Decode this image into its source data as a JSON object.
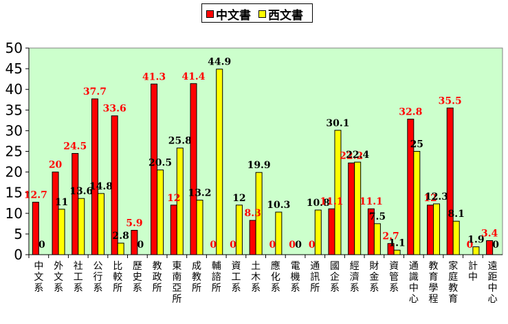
{
  "chart_data": {
    "type": "bar",
    "categories": [
      "中文系",
      "外文系",
      "社工系",
      "公行系",
      "比較所",
      "歷史系",
      "教政所",
      "東南亞所",
      "成教所",
      "輔諮所",
      "資工系",
      "土木系",
      "應化系",
      "電機系",
      "通訊所",
      "國企系",
      "經濟系",
      "財金系",
      "資管系",
      "通識中心",
      "教育學程",
      "家庭教育",
      "計中",
      "遠距中心"
    ],
    "series": [
      {
        "name": "中文書",
        "color": "#ff0000",
        "values": [
          12.7,
          20,
          24.5,
          37.7,
          33.6,
          5.9,
          41.3,
          12,
          41.4,
          0,
          0,
          8.3,
          0,
          0,
          0,
          11.1,
          22.2,
          11.1,
          2.7,
          32.8,
          12,
          35.5,
          0,
          3.4
        ],
        "labels": [
          "12.7",
          "20",
          "24.5",
          "37.7",
          "33.6",
          "5.9",
          "41.3",
          "12",
          "41.4",
          "0",
          "0",
          "8.3",
          "0",
          "0",
          "0",
          "11.1",
          "22.2",
          "11.1",
          "2.7",
          "32.8",
          "12",
          "35.5",
          "0",
          "3.4"
        ]
      },
      {
        "name": "西文書",
        "color": "#ffff00",
        "values": [
          0,
          11,
          13.6,
          14.8,
          2.8,
          0,
          20.5,
          25.8,
          13.2,
          44.9,
          12,
          19.9,
          10.3,
          0,
          10.8,
          30.1,
          22.4,
          7.5,
          1.1,
          25,
          12.3,
          8.1,
          1.9,
          0
        ],
        "labels": [
          "0",
          "11",
          "13.6",
          "14.8",
          "2.8",
          "0",
          "20.5",
          "25.8",
          "13.2",
          "44.9",
          "12",
          "19.9",
          "10.3",
          "0",
          "10.8",
          "30.1",
          "22.4",
          "7.5",
          "1.1",
          "25",
          "12.3",
          "8.1",
          "1.9",
          "0"
        ]
      }
    ],
    "ylim": [
      0,
      50
    ],
    "yticks": [
      "0",
      "5",
      "10",
      "15",
      "20",
      "25",
      "30",
      "35",
      "40",
      "45",
      "50"
    ],
    "grid": false,
    "legend": "top-center",
    "colors": {
      "plot_background": "#ccffcc",
      "red_label": "#ff0000",
      "black_label": "#000000"
    }
  }
}
